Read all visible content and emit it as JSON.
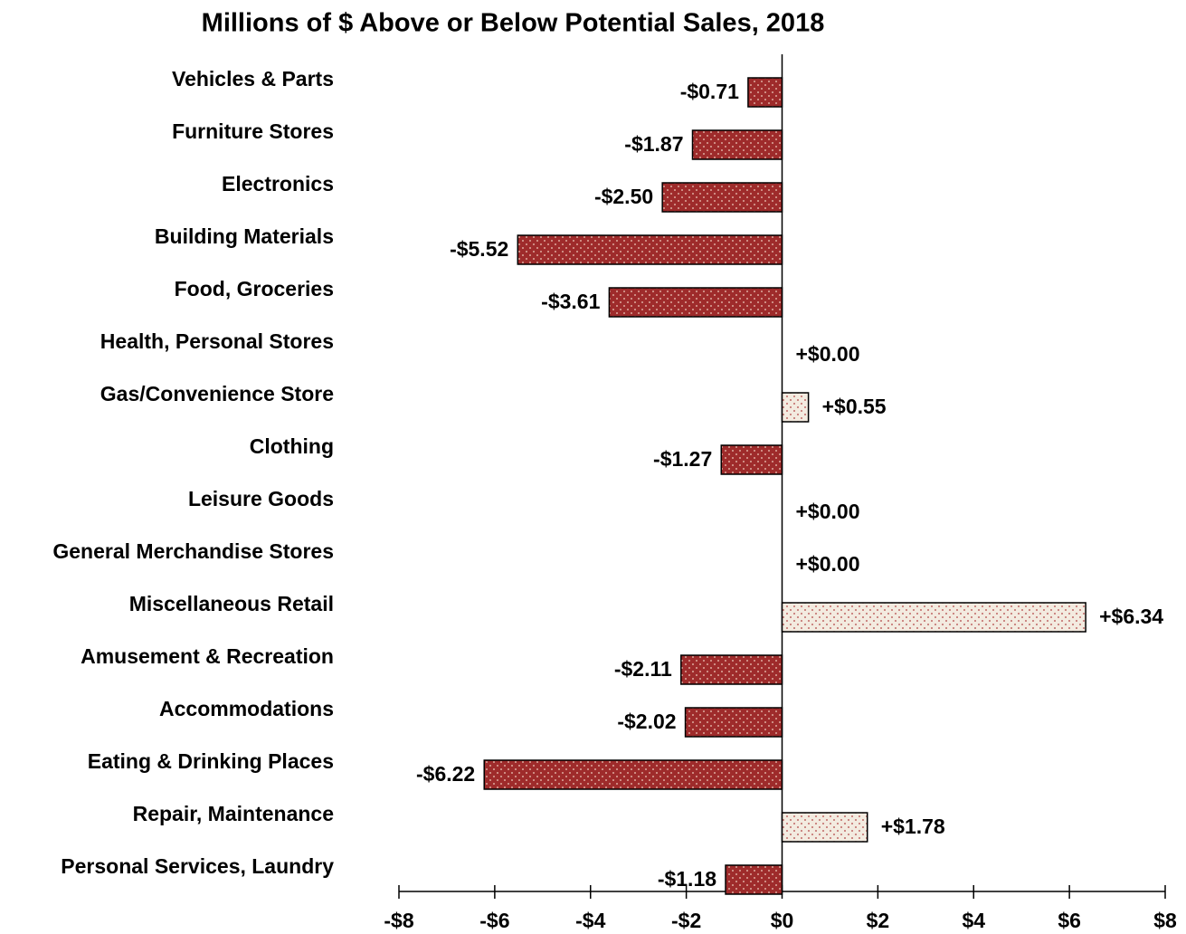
{
  "chart_data": {
    "type": "hbar",
    "title": "Millions of $ Above or Below Potential Sales, 2018",
    "categories": [
      "Vehicles & Parts",
      "Furniture Stores",
      "Electronics",
      "Building Materials",
      "Food, Groceries",
      "Health, Personal Stores",
      "Gas/Convenience Store",
      "Clothing",
      "Leisure Goods",
      "General Merchandise Stores",
      "Miscellaneous Retail",
      "Amusement & Recreation",
      "Accommodations",
      "Eating & Drinking Places",
      "Repair, Maintenance",
      "Personal Services, Laundry"
    ],
    "values": [
      -0.71,
      -1.87,
      -2.5,
      -5.52,
      -3.61,
      0,
      0.55,
      -1.27,
      0,
      0,
      6.34,
      -2.11,
      -2.02,
      -6.22,
      1.78,
      -1.18
    ],
    "value_labels": [
      "-$0.71",
      "-$1.87",
      "-$2.50",
      "-$5.52",
      "-$3.61",
      "+$0.00",
      "+$0.55",
      "-$1.27",
      "+$0.00",
      "+$0.00",
      "+$6.34",
      "-$2.11",
      "-$2.02",
      "-$6.22",
      "+$1.78",
      "-$1.18"
    ],
    "color_negative": "#9e2b2b",
    "color_positive": "#f3ebe0",
    "xlim": [
      -8,
      8
    ],
    "xticks": [
      {
        "value": -8,
        "label": "-$8"
      },
      {
        "value": -6,
        "label": "-$6"
      },
      {
        "value": -4,
        "label": "-$4"
      },
      {
        "value": -2,
        "label": "-$2"
      },
      {
        "value": 0,
        "label": "$0"
      },
      {
        "value": 2,
        "label": "$2"
      },
      {
        "value": 4,
        "label": "$4"
      },
      {
        "value": 6,
        "label": "$6"
      },
      {
        "value": 8,
        "label": "$8"
      }
    ]
  }
}
